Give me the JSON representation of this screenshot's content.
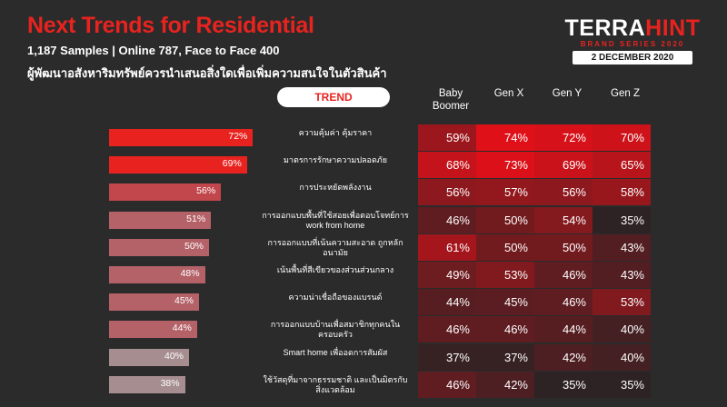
{
  "header": {
    "title": "Next Trends for Residential",
    "subtitle": "1,187 Samples | Online 787, Face to Face 400",
    "question": "ผู้พัฒนาอสังหาริมทรัพย์ควรนำเสนอสิ่งใดเพื่อเพิ่มความสนใจในตัวสินค้า"
  },
  "brand": {
    "name_part1": "TERRA",
    "name_part2": "HINT",
    "series": "BRAND SERIES 2020",
    "date": "2 DECEMBER 2020",
    "accent_color": "#e8231f"
  },
  "chart_data": {
    "type": "heatmap",
    "trend_header": "TREND",
    "columns": [
      "Baby Boomer",
      "Gen X",
      "Gen Y",
      "Gen Z"
    ],
    "rows": [
      "ความคุ้มค่า คุ้มราคา",
      "มาตรการรักษาความปลอดภัย",
      "การประหยัดพลังงาน",
      "การออกแบบพื้นที่ใช้สอยเพื่อตอบโจทย์การ work from home",
      "การออกแบบที่เน้นความสะอาด ถูกหลักอนามัย",
      "เน้นพื้นที่สีเขียวของส่วนส่วนกลาง",
      "ความน่าเชื่อถือของแบรนด์",
      "การออกแบบบ้านเพื่อสมาชิกทุกคนในครอบครัว",
      "Smart home เพื่ออดการสัมผัส",
      "ใช้วัสดุที่มาจากธรรมชาติ และเป็นมิตรกับสิ่งแวดล้อม"
    ],
    "overall": [
      72,
      69,
      56,
      51,
      50,
      48,
      45,
      44,
      40,
      38
    ],
    "overall_labels": [
      "72%",
      "69%",
      "56%",
      "51%",
      "50%",
      "48%",
      "45%",
      "44%",
      "40%",
      "38%"
    ],
    "values": [
      [
        59,
        74,
        72,
        70
      ],
      [
        68,
        73,
        69,
        65
      ],
      [
        56,
        57,
        56,
        58
      ],
      [
        46,
        50,
        54,
        35
      ],
      [
        61,
        50,
        50,
        43
      ],
      [
        49,
        53,
        46,
        43
      ],
      [
        44,
        45,
        46,
        53
      ],
      [
        46,
        46,
        44,
        40
      ],
      [
        37,
        37,
        42,
        40
      ],
      [
        46,
        42,
        35,
        35
      ]
    ],
    "value_labels": [
      [
        "59%",
        "74%",
        "72%",
        "70%"
      ],
      [
        "68%",
        "73%",
        "69%",
        "65%"
      ],
      [
        "56%",
        "57%",
        "56%",
        "58%"
      ],
      [
        "46%",
        "50%",
        "54%",
        "35%"
      ],
      [
        "61%",
        "50%",
        "50%",
        "43%"
      ],
      [
        "49%",
        "53%",
        "46%",
        "43%"
      ],
      [
        "44%",
        "45%",
        "46%",
        "53%"
      ],
      [
        "46%",
        "46%",
        "44%",
        "40%"
      ],
      [
        "37%",
        "37%",
        "42%",
        "40%"
      ],
      [
        "46%",
        "42%",
        "35%",
        "35%"
      ]
    ],
    "overall_range": [
      0,
      100
    ]
  }
}
